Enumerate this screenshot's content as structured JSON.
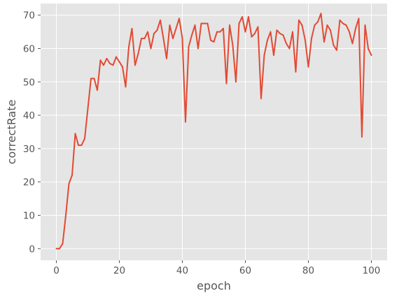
{
  "chart_data": {
    "type": "line",
    "title": "",
    "xlabel": "epoch",
    "ylabel": "correctRate",
    "xlim": [
      -5,
      105
    ],
    "ylim": [
      -3.5,
      73.5
    ],
    "xticks": [
      0,
      20,
      40,
      60,
      80,
      100
    ],
    "yticks": [
      0,
      10,
      20,
      30,
      40,
      50,
      60,
      70
    ],
    "grid": true,
    "legend": "none",
    "colors": {
      "background": "#e5e5e5",
      "grid": "#ffffff",
      "line": "#e24a33",
      "text": "#555555"
    },
    "series": [
      {
        "x": [
          0,
          1,
          2,
          3,
          4,
          5,
          6,
          7,
          8,
          9,
          10,
          11,
          12,
          13,
          14,
          15,
          16,
          17,
          18,
          19,
          20,
          21,
          22,
          23,
          24,
          25,
          26,
          27,
          28,
          29,
          30,
          31,
          32,
          33,
          34,
          35,
          36,
          37,
          38,
          39,
          40,
          41,
          42,
          43,
          44,
          45,
          46,
          47,
          48,
          49,
          50,
          51,
          52,
          53,
          54,
          55,
          56,
          57,
          58,
          59,
          60,
          61,
          62,
          63,
          64,
          65,
          66,
          67,
          68,
          69,
          70,
          71,
          72,
          73,
          74,
          75,
          76,
          77,
          78,
          79,
          80,
          81,
          82,
          83,
          84,
          85,
          86,
          87,
          88,
          89,
          90,
          91,
          92,
          93,
          94,
          95,
          96,
          97,
          98,
          99,
          100
        ],
        "values": [
          0,
          0,
          1.5,
          10,
          19.5,
          22,
          34.5,
          31,
          31,
          33,
          42,
          51,
          51,
          47.5,
          56.5,
          55,
          57,
          55.5,
          55,
          57.5,
          56,
          54.5,
          48.5,
          60.5,
          66,
          55,
          58.5,
          63,
          63,
          65,
          60,
          64.5,
          65.5,
          68.5,
          63,
          57,
          67,
          63,
          66,
          69,
          63,
          38,
          60.5,
          64,
          67,
          60,
          67.5,
          67.5,
          67.5,
          62.5,
          62,
          65,
          65,
          66,
          49.5,
          67,
          61,
          50,
          67.5,
          69.5,
          65,
          69.5,
          63.5,
          64.5,
          66.5,
          45,
          58,
          62.5,
          65,
          58,
          65.5,
          64.5,
          64,
          61.5,
          60,
          65,
          53,
          68.5,
          67,
          62.5,
          54.5,
          63,
          67,
          68,
          70.5,
          62,
          67,
          65.5,
          61,
          59.5,
          68.5,
          67.5,
          67,
          65,
          61.5,
          66,
          69,
          33.5,
          67,
          60,
          58
        ]
      }
    ]
  }
}
